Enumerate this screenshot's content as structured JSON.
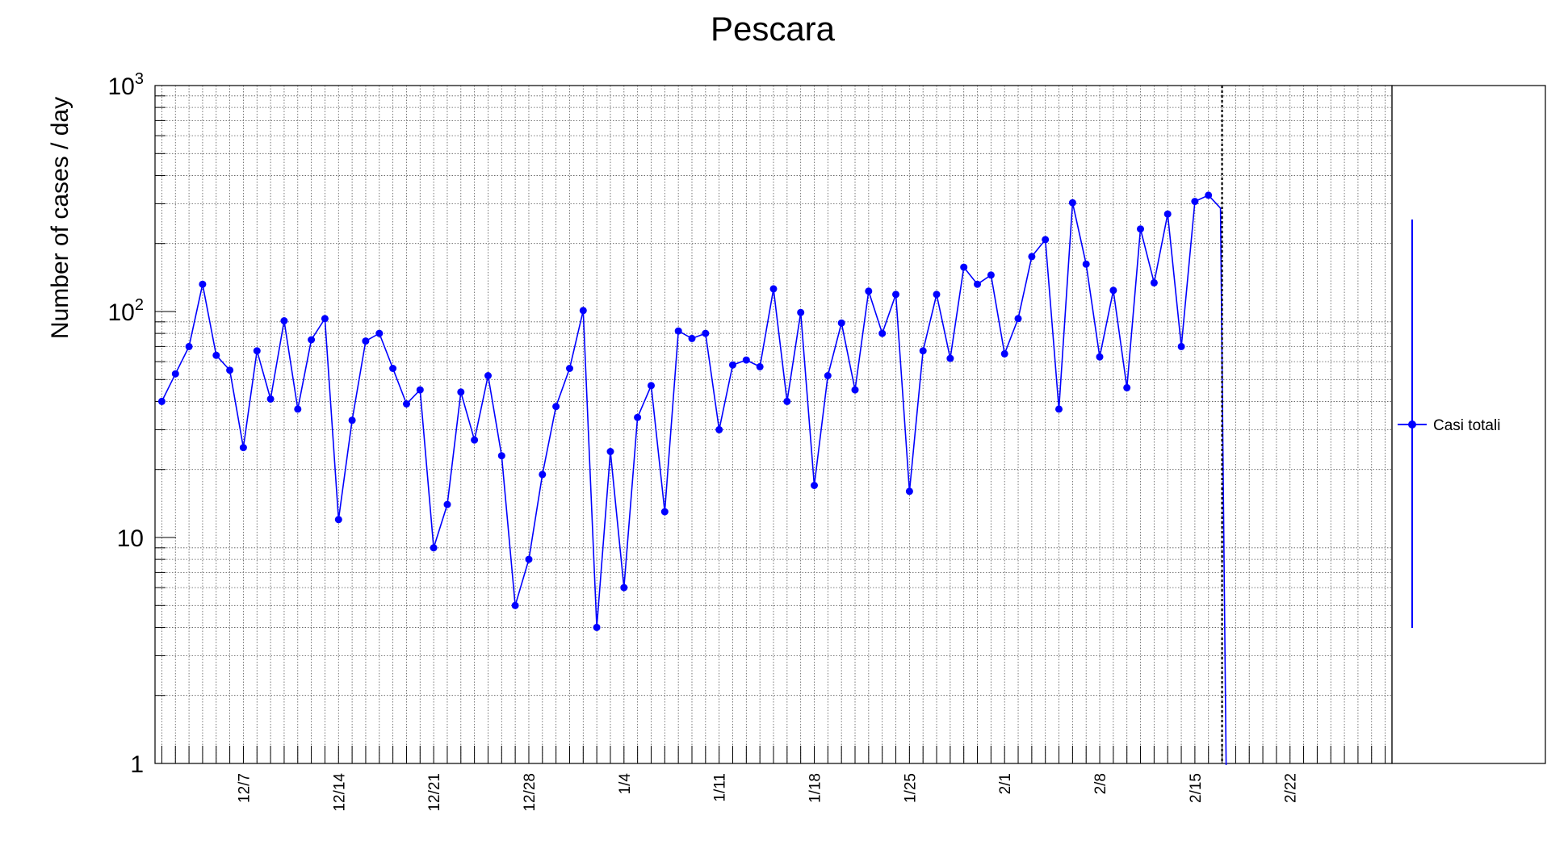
{
  "chart_data": {
    "type": "line",
    "title": "Pescara",
    "ylabel": "Number of cases / day",
    "xlabel": "",
    "yscale": "log",
    "ylim": [
      1,
      1000
    ],
    "y_ticks": [
      {
        "value": 1,
        "label": "1"
      },
      {
        "value": 10,
        "label": "10"
      },
      {
        "value": 100,
        "label": "10",
        "exp": "2"
      },
      {
        "value": 1000,
        "label": "10",
        "exp": "3"
      }
    ],
    "x_start": "2020-12-01",
    "x_end": "2021-03-02",
    "x_ticks": [
      {
        "date": "2020-12-07",
        "label": "12/7"
      },
      {
        "date": "2020-12-14",
        "label": "12/14"
      },
      {
        "date": "2020-12-21",
        "label": "12/21"
      },
      {
        "date": "2020-12-28",
        "label": "12/28"
      },
      {
        "date": "2021-01-04",
        "label": "1/4"
      },
      {
        "date": "2021-01-11",
        "label": "1/11"
      },
      {
        "date": "2021-01-18",
        "label": "1/18"
      },
      {
        "date": "2021-01-25",
        "label": "1/25"
      },
      {
        "date": "2021-02-01",
        "label": "2/1"
      },
      {
        "date": "2021-02-08",
        "label": "2/8"
      },
      {
        "date": "2021-02-15",
        "label": "2/15"
      },
      {
        "date": "2021-02-22",
        "label": "2/22"
      }
    ],
    "grid": true,
    "vline_date": "2021-02-17",
    "legend_position": "right",
    "series": [
      {
        "name": "Casi totali",
        "color": "#0000ff",
        "x": [
          "2020-12-01",
          "2020-12-02",
          "2020-12-03",
          "2020-12-04",
          "2020-12-05",
          "2020-12-06",
          "2020-12-07",
          "2020-12-08",
          "2020-12-09",
          "2020-12-10",
          "2020-12-11",
          "2020-12-12",
          "2020-12-13",
          "2020-12-14",
          "2020-12-15",
          "2020-12-16",
          "2020-12-17",
          "2020-12-18",
          "2020-12-19",
          "2020-12-20",
          "2020-12-21",
          "2020-12-22",
          "2020-12-23",
          "2020-12-24",
          "2020-12-25",
          "2020-12-26",
          "2020-12-27",
          "2020-12-28",
          "2020-12-29",
          "2020-12-30",
          "2020-12-31",
          "2021-01-01",
          "2021-01-02",
          "2021-01-03",
          "2021-01-04",
          "2021-01-05",
          "2021-01-06",
          "2021-01-07",
          "2021-01-08",
          "2021-01-09",
          "2021-01-10",
          "2021-01-11",
          "2021-01-12",
          "2021-01-13",
          "2021-01-14",
          "2021-01-15",
          "2021-01-16",
          "2021-01-17",
          "2021-01-18",
          "2021-01-19",
          "2021-01-20",
          "2021-01-21",
          "2021-01-22",
          "2021-01-23",
          "2021-01-24",
          "2021-01-25",
          "2021-01-26",
          "2021-01-27",
          "2021-01-28",
          "2021-01-29",
          "2021-01-30",
          "2021-01-31",
          "2021-02-01",
          "2021-02-02",
          "2021-02-03",
          "2021-02-04",
          "2021-02-05",
          "2021-02-06",
          "2021-02-07",
          "2021-02-08",
          "2021-02-09",
          "2021-02-10",
          "2021-02-11",
          "2021-02-12",
          "2021-02-13",
          "2021-02-14",
          "2021-02-15",
          "2021-02-16"
        ],
        "values": [
          40,
          53,
          70,
          132,
          64,
          55,
          25,
          67,
          41,
          91,
          37,
          75,
          93,
          12,
          33,
          74,
          80,
          56,
          39,
          45,
          9,
          14,
          44,
          27,
          52,
          23,
          5,
          8,
          19,
          38,
          56,
          101,
          4,
          24,
          6,
          34,
          47,
          13,
          82,
          76,
          80,
          30,
          58,
          61,
          57,
          126,
          40,
          99,
          17,
          52,
          89,
          45,
          123,
          80,
          119,
          16,
          67,
          119,
          62,
          157,
          132,
          145,
          65,
          93,
          175,
          208,
          37,
          303,
          162,
          63,
          124,
          46,
          232,
          134,
          270,
          70,
          307,
          327
        ]
      }
    ]
  }
}
